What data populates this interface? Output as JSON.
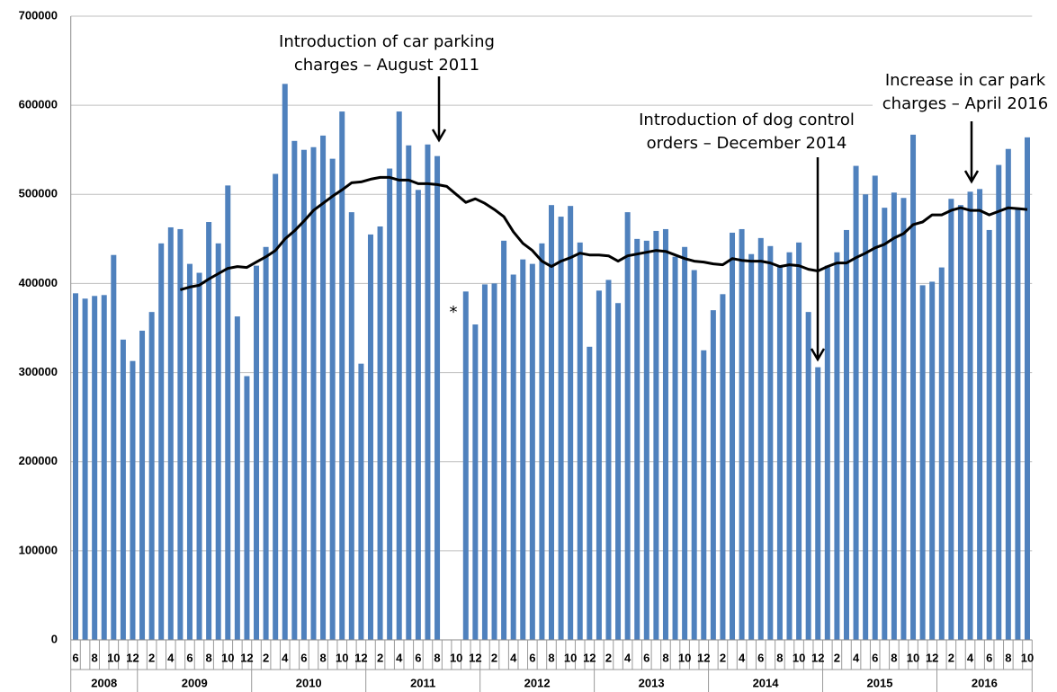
{
  "chart_data": {
    "type": "bar",
    "categories": [
      "6",
      null,
      "8",
      null,
      "10",
      null,
      "12",
      null,
      "2",
      null,
      "4",
      null,
      "6",
      null,
      "8",
      null,
      "10",
      null,
      "12",
      null,
      "2",
      null,
      "4",
      null,
      "6",
      null,
      "8",
      null,
      "10",
      null,
      "12",
      null,
      "2",
      null,
      "4",
      null,
      "6",
      null,
      "8",
      null,
      "10",
      null,
      "12",
      null,
      "2",
      null,
      "4",
      null,
      "6",
      null,
      "8",
      null,
      "10",
      null,
      "12",
      null,
      "2",
      null,
      "4",
      null,
      "6",
      null,
      "8",
      null,
      "10",
      null,
      "12",
      null,
      "2",
      null,
      "4",
      null,
      "6",
      null,
      "8",
      null,
      "10",
      null,
      "12",
      null,
      "2",
      null,
      "4",
      null,
      "6",
      null,
      "8",
      null,
      "10",
      null,
      "12",
      null,
      "2",
      null,
      "4",
      null,
      "6",
      null,
      "8",
      null,
      "10"
    ],
    "years": [
      "2008",
      "2009",
      "2010",
      "2011",
      "2012",
      "2013",
      "2014",
      "2015",
      "2016"
    ],
    "series": [
      {
        "type": "bar",
        "color": "#4f81bd",
        "values": [
          389000,
          383000,
          386000,
          387000,
          432000,
          337000,
          313000,
          347000,
          368000,
          445000,
          463000,
          461000,
          422000,
          412000,
          469000,
          445000,
          510000,
          363000,
          296000,
          420000,
          441000,
          523000,
          624000,
          560000,
          550000,
          553000,
          566000,
          540000,
          593000,
          480000,
          310000,
          455000,
          464000,
          529000,
          593000,
          555000,
          505000,
          556000,
          543000,
          null,
          null,
          391000,
          354000,
          399000,
          400000,
          448000,
          410000,
          427000,
          422000,
          445000,
          488000,
          475000,
          487000,
          446000,
          329000,
          392000,
          404000,
          378000,
          480000,
          450000,
          448000,
          459000,
          461000,
          430000,
          441000,
          415000,
          325000,
          370000,
          388000,
          457000,
          461000,
          433000,
          451000,
          442000,
          420000,
          435000,
          446000,
          368000,
          306000,
          420000,
          435000,
          460000,
          532000,
          500000,
          521000,
          485000,
          502000,
          496000,
          567000,
          398000,
          402000,
          418000,
          495000,
          488000,
          503000,
          506000,
          460000,
          533000,
          551000,
          484000,
          564000
        ]
      },
      {
        "type": "line",
        "color": "#000000",
        "values": [
          null,
          null,
          null,
          null,
          null,
          null,
          null,
          null,
          null,
          null,
          null,
          393000,
          396000,
          398000,
          405000,
          411000,
          417000,
          419000,
          418000,
          424000,
          430000,
          437000,
          450000,
          459000,
          470000,
          482000,
          490000,
          498000,
          505000,
          513000,
          514000,
          517000,
          519000,
          519000,
          516000,
          516000,
          512000,
          512000,
          511000,
          509000,
          500000,
          491000,
          495000,
          490000,
          483000,
          475000,
          458000,
          445000,
          437000,
          425000,
          419000,
          425000,
          429000,
          434000,
          432000,
          432000,
          431000,
          425000,
          431000,
          433000,
          435000,
          437000,
          436000,
          432000,
          428000,
          425000,
          424000,
          422000,
          421000,
          428000,
          426000,
          425000,
          425000,
          423000,
          419000,
          421000,
          420000,
          416000,
          414000,
          419000,
          423000,
          423000,
          429000,
          434000,
          440000,
          444000,
          451000,
          456000,
          466000,
          469000,
          477000,
          477000,
          482000,
          485000,
          482000,
          482000,
          477000,
          481000,
          485000,
          484000,
          483000
        ]
      }
    ],
    "ylim": [
      0,
      700000
    ],
    "yticks": [
      0,
      100000,
      200000,
      300000,
      400000,
      500000,
      600000,
      700000
    ],
    "grid": true,
    "annotations": [
      {
        "lines": [
          "Introduction of car parking",
          "charges – August 2011"
        ]
      },
      {
        "lines": [
          "Introduction of dog control",
          "orders – December 2014"
        ]
      },
      {
        "lines": [
          "Increase in car park",
          "charges – April 2016"
        ]
      },
      {
        "lines": [
          "*"
        ]
      }
    ]
  }
}
